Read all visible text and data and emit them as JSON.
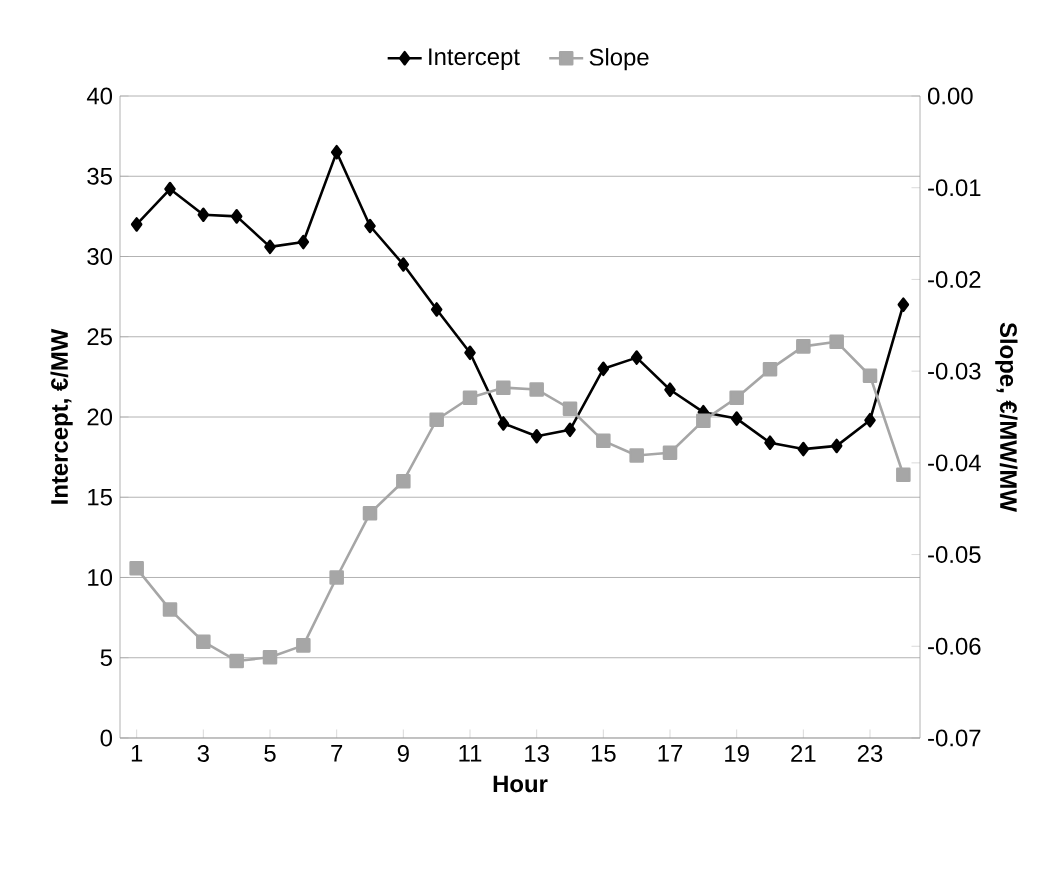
{
  "chart_data": {
    "type": "line",
    "xlabel": "Hour",
    "ylabel": "Intercept, €/MW",
    "y2label": "Slope, €/MW/MW",
    "x": [
      1,
      2,
      3,
      4,
      5,
      6,
      7,
      8,
      9,
      10,
      11,
      12,
      13,
      14,
      15,
      16,
      17,
      18,
      19,
      20,
      21,
      22,
      23,
      24
    ],
    "xlim": [
      0.5,
      24.5
    ],
    "xticks": [
      1,
      3,
      5,
      7,
      9,
      11,
      13,
      15,
      17,
      19,
      21,
      23
    ],
    "ylim": [
      0,
      40
    ],
    "yticks": [
      0,
      5,
      10,
      15,
      20,
      25,
      30,
      35,
      40
    ],
    "y2lim": [
      -0.07,
      0
    ],
    "y2ticks": [
      {
        "value": -0.07,
        "label": "-0.07"
      },
      {
        "value": -0.06,
        "label": "-0.06"
      },
      {
        "value": -0.05,
        "label": "-0.05"
      },
      {
        "value": -0.04,
        "label": "-0.04"
      },
      {
        "value": -0.03,
        "label": "-0.03"
      },
      {
        "value": -0.02,
        "label": "-0.02"
      },
      {
        "value": -0.01,
        "label": "-0.01"
      },
      {
        "value": 0,
        "label": "0.00"
      }
    ],
    "grid": "y",
    "legend": "top",
    "line_style": "solid",
    "series": [
      {
        "name": "Intercept",
        "color": "#000000",
        "marker": "diamond",
        "values": [
          32.0,
          34.2,
          32.6,
          32.5,
          30.6,
          30.9,
          36.5,
          31.9,
          29.5,
          26.7,
          24.0,
          19.6,
          18.8,
          19.2,
          23.0,
          23.7,
          21.7,
          20.3,
          19.9,
          18.4,
          18.0,
          18.2,
          19.8,
          27.0
        ]
      },
      {
        "name": "Slope",
        "color": "#a6a6a6",
        "marker": "square",
        "axis": "y2",
        "values": [
          -0.0515,
          -0.056,
          -0.0595,
          -0.0616,
          -0.0612,
          -0.0599,
          -0.0525,
          -0.0455,
          -0.042,
          -0.0353,
          -0.0329,
          -0.0318,
          -0.032,
          -0.0341,
          -0.0376,
          -0.0392,
          -0.0389,
          -0.0354,
          -0.0329,
          -0.0298,
          -0.0273,
          -0.0268,
          -0.0305,
          -0.0413
        ]
      }
    ]
  }
}
